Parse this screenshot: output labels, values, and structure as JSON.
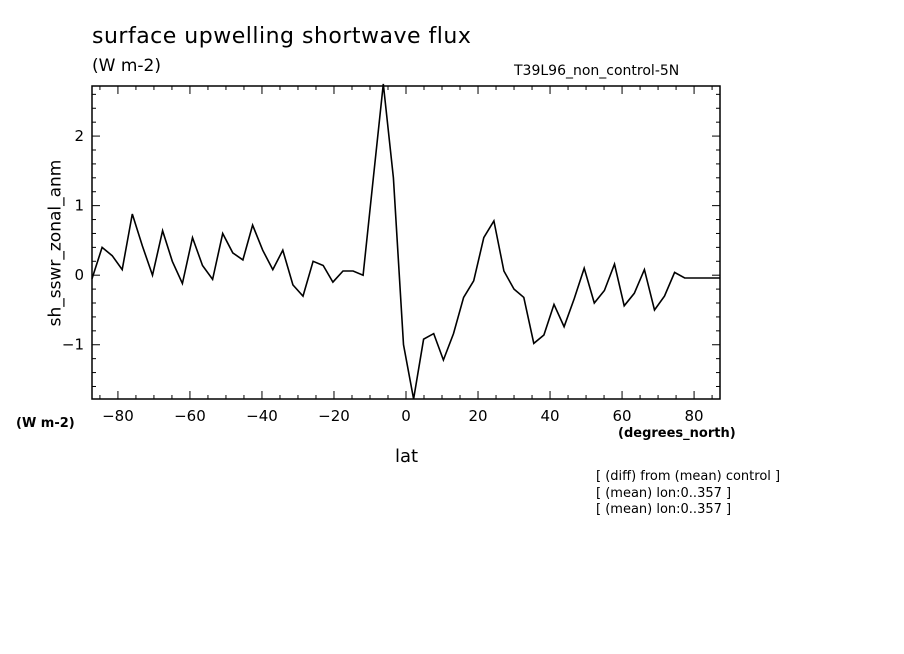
{
  "header": {
    "title": "surface upwelling shortwave flux",
    "units": "(W m-2)",
    "run": "T39L96_non_control-5N"
  },
  "footer": {
    "notes": [
      "[ (diff) from (mean) control ]",
      "[ (mean) lon:0..357 ]",
      "[ (mean) lon:0..357 ]"
    ]
  },
  "chart_data": {
    "type": "line",
    "title": "surface upwelling shortwave flux",
    "xlabel": "lat",
    "xunits": "(degrees_north)",
    "ylabel": "sh_sswr_zonal_anm",
    "yunits": "(W m-2)",
    "xlim": [
      -87.2,
      87.2
    ],
    "ylim": [
      -1.78,
      2.72
    ],
    "xticks": [
      -80,
      -60,
      -40,
      -20,
      0,
      20,
      40,
      60,
      80
    ],
    "yticks": [
      -1,
      0,
      1,
      2
    ],
    "grid": false,
    "series": [
      {
        "x": [
          -87.2,
          -84.4,
          -81.6,
          -78.8,
          -76.0,
          -73.2,
          -70.4,
          -67.6,
          -64.9,
          -62.1,
          -59.3,
          -56.5,
          -53.7,
          -50.9,
          -48.1,
          -45.3,
          -42.6,
          -39.8,
          -37.0,
          -34.2,
          -31.4,
          -28.6,
          -25.8,
          -23.0,
          -20.3,
          -17.5,
          -14.7,
          -11.9,
          -9.1,
          -6.3,
          -3.5,
          -0.7,
          2.1,
          4.9,
          7.7,
          10.4,
          13.2,
          16.0,
          18.8,
          21.6,
          24.4,
          27.2,
          30.0,
          32.7,
          35.5,
          38.3,
          41.1,
          43.9,
          46.7,
          49.5,
          52.3,
          55.1,
          57.9,
          60.6,
          63.4,
          66.2,
          69.0,
          71.8,
          74.6,
          77.4,
          80.2,
          83.0,
          85.8,
          87.2
        ],
        "values": [
          -0.05,
          0.4,
          0.28,
          0.08,
          0.88,
          0.42,
          0.0,
          0.64,
          0.2,
          -0.12,
          0.54,
          0.14,
          -0.06,
          0.6,
          0.32,
          0.22,
          0.72,
          0.36,
          0.08,
          0.36,
          -0.14,
          -0.3,
          0.2,
          0.14,
          -0.1,
          0.06,
          0.06,
          0.0,
          1.38,
          2.75,
          1.4,
          -1.0,
          -1.78,
          -0.92,
          -0.84,
          -1.22,
          -0.84,
          -0.32,
          -0.08,
          0.54,
          0.78,
          0.06,
          -0.2,
          -0.32,
          -0.98,
          -0.86,
          -0.42,
          -0.74,
          -0.34,
          0.1,
          -0.4,
          -0.22,
          0.16,
          -0.44,
          -0.26,
          0.08,
          -0.5,
          -0.3,
          0.04,
          -0.04,
          -0.04,
          -0.04,
          -0.04,
          -0.04
        ]
      }
    ]
  }
}
